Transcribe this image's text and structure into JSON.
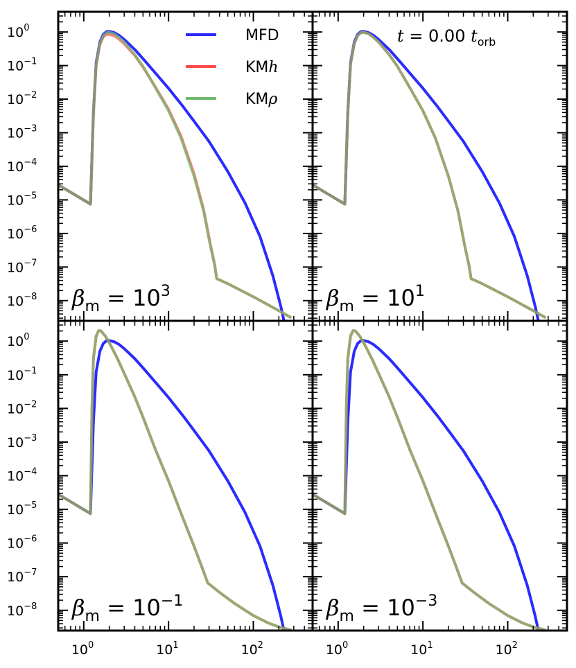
{
  "chart_data": {
    "type": "line",
    "x_scale": "log",
    "y_scale": "log",
    "xlim": [
      0.5,
      500
    ],
    "ylim": [
      2.5e-09,
      4
    ],
    "grid": false,
    "legend_position": "top-right of top-left panel",
    "x_tick_labels": [
      {
        "value": 1,
        "base": "10",
        "exp": "0"
      },
      {
        "value": 10,
        "base": "10",
        "exp": "1"
      },
      {
        "value": 100,
        "base": "10",
        "exp": "2"
      }
    ],
    "y_tick_labels": [
      {
        "value": 1,
        "base": "10",
        "exp": "0"
      },
      {
        "value": 0.1,
        "base": "10",
        "exp": "−1"
      },
      {
        "value": 0.01,
        "base": "10",
        "exp": "−2"
      },
      {
        "value": 0.001,
        "base": "10",
        "exp": "−3"
      },
      {
        "value": 0.0001,
        "base": "10",
        "exp": "−4"
      },
      {
        "value": 1e-05,
        "base": "10",
        "exp": "−5"
      },
      {
        "value": 1e-06,
        "base": "10",
        "exp": "−6"
      },
      {
        "value": 1e-07,
        "base": "10",
        "exp": "−7"
      },
      {
        "value": 1e-08,
        "base": "10",
        "exp": "−8"
      }
    ],
    "legend": [
      {
        "name_main": "MFD",
        "name_italic": "",
        "color": "#2b2bff"
      },
      {
        "name_main": "KM",
        "name_italic": "h",
        "color": "#ff4a4a"
      },
      {
        "name_main": "KM",
        "name_italic": "ρ",
        "color": "#6db86d"
      }
    ],
    "time_annotation": {
      "t": "t",
      "eq": " = 0.00 ",
      "t2": "t",
      "sub": "orb"
    },
    "panels": [
      {
        "label": {
          "beta": "β",
          "sub": "m",
          "eq": " = 10",
          "exp": "3"
        },
        "series": [
          {
            "name": "MFD",
            "color": "#2b2bff",
            "x": [
              0.5,
              1.2,
              1.3,
              1.4,
              1.55,
              1.7,
              1.85,
              2.0,
              2.3,
              2.6,
              3.0,
              4.0,
              5.0,
              7.0,
              10,
              15,
              20,
              30,
              50,
              80,
              120,
              170,
              210,
              230,
              300
            ],
            "y": [
              2.8e-05,
              7.5e-06,
              0.004,
              0.12,
              0.5,
              0.85,
              1.02,
              1.04,
              0.95,
              0.8,
              0.6,
              0.3,
              0.16,
              0.06,
              0.021,
              0.0058,
              0.0022,
              0.00055,
              7e-05,
              8e-06,
              8e-07,
              5.5e-08,
              7e-09,
              2.5e-09,
              1.2e-09
            ]
          },
          {
            "name": "KMh",
            "color": "#ff4a4a",
            "x": [
              0.5,
              1.2,
              1.3,
              1.4,
              1.55,
              1.7,
              1.85,
              2.0,
              2.3,
              2.6,
              3.0,
              4.0,
              5.0,
              7.0,
              10,
              14,
              20,
              26,
              31,
              35,
              37,
              50,
              100,
              200,
              280
            ],
            "y": [
              2.8e-05,
              7.5e-06,
              0.0035,
              0.1,
              0.42,
              0.72,
              0.84,
              0.85,
              0.77,
              0.62,
              0.45,
              0.2,
              0.09,
              0.023,
              0.005,
              0.0008,
              6e-05,
              5e-06,
              5e-07,
              1.2e-07,
              4.5e-08,
              3.2e-08,
              1.3e-08,
              5e-09,
              3.1e-09
            ]
          },
          {
            "name": "KMρ",
            "color": "#6db86d",
            "x": [
              0.5,
              1.2,
              1.3,
              1.4,
              1.55,
              1.7,
              1.85,
              2.0,
              2.3,
              2.6,
              3.0,
              4.0,
              5.0,
              7.0,
              10,
              14,
              20,
              26,
              31,
              35,
              37,
              50,
              100,
              200,
              280
            ],
            "y": [
              2.8e-05,
              7.5e-06,
              0.004,
              0.11,
              0.45,
              0.78,
              0.95,
              0.98,
              0.88,
              0.7,
              0.5,
              0.21,
              0.095,
              0.022,
              0.0045,
              0.0007,
              5e-05,
              4.5e-06,
              4.5e-07,
              1.1e-07,
              4.5e-08,
              3.2e-08,
              1.3e-08,
              5e-09,
              3.1e-09
            ]
          }
        ]
      },
      {
        "label": {
          "beta": "β",
          "sub": "m",
          "eq": " = 10",
          "exp": "1"
        },
        "series": [
          {
            "name": "MFD",
            "color": "#2b2bff",
            "x": [
              0.5,
              1.2,
              1.3,
              1.4,
              1.55,
              1.7,
              1.85,
              2.0,
              2.3,
              2.6,
              3.0,
              4.0,
              5.0,
              7.0,
              10,
              15,
              20,
              30,
              50,
              80,
              120,
              170,
              210,
              230,
              300
            ],
            "y": [
              2.8e-05,
              7.5e-06,
              0.004,
              0.12,
              0.5,
              0.85,
              1.02,
              1.04,
              0.95,
              0.8,
              0.6,
              0.3,
              0.16,
              0.06,
              0.021,
              0.0058,
              0.0022,
              0.00055,
              7e-05,
              8e-06,
              8e-07,
              5.5e-08,
              7e-09,
              2.5e-09,
              1.2e-09
            ]
          },
          {
            "name": "KMh",
            "color": "#ff4a4a",
            "x": [
              0.5,
              1.2,
              1.3,
              1.4,
              1.55,
              1.7,
              1.85,
              2.0,
              2.3,
              2.6,
              3.0,
              4.0,
              5.0,
              7.0,
              10,
              14,
              20,
              26,
              31,
              35,
              37,
              50,
              100,
              200,
              280
            ],
            "y": [
              2.8e-05,
              7.5e-06,
              0.004,
              0.11,
              0.45,
              0.78,
              0.95,
              0.98,
              0.88,
              0.7,
              0.5,
              0.21,
              0.095,
              0.022,
              0.0045,
              0.0007,
              5e-05,
              4.5e-06,
              4.5e-07,
              1.1e-07,
              4.5e-08,
              3.2e-08,
              1.3e-08,
              5e-09,
              3.1e-09
            ]
          },
          {
            "name": "KMρ",
            "color": "#6db86d",
            "x": [
              0.5,
              1.2,
              1.3,
              1.4,
              1.55,
              1.7,
              1.85,
              2.0,
              2.3,
              2.6,
              3.0,
              4.0,
              5.0,
              7.0,
              10,
              14,
              20,
              26,
              31,
              35,
              37,
              50,
              100,
              200,
              280
            ],
            "y": [
              2.8e-05,
              7.5e-06,
              0.004,
              0.11,
              0.45,
              0.78,
              0.95,
              0.98,
              0.88,
              0.7,
              0.5,
              0.21,
              0.095,
              0.022,
              0.0045,
              0.0007,
              5e-05,
              4.5e-06,
              4.5e-07,
              1.1e-07,
              4.5e-08,
              3.2e-08,
              1.3e-08,
              5e-09,
              3.1e-09
            ]
          }
        ]
      },
      {
        "label": {
          "beta": "β",
          "sub": "m",
          "eq": " = 10",
          "exp": "−1"
        },
        "series": [
          {
            "name": "MFD",
            "color": "#2b2bff",
            "x": [
              0.5,
              1.2,
              1.3,
              1.4,
              1.55,
              1.7,
              1.85,
              2.0,
              2.3,
              2.6,
              3.0,
              4.0,
              5.0,
              7.0,
              10,
              15,
              20,
              30,
              50,
              80,
              120,
              170,
              210,
              230,
              300
            ],
            "y": [
              2.8e-05,
              7.5e-06,
              0.004,
              0.12,
              0.5,
              0.85,
              1.02,
              1.04,
              0.95,
              0.8,
              0.6,
              0.3,
              0.16,
              0.06,
              0.021,
              0.0058,
              0.0022,
              0.00055,
              7e-05,
              8e-06,
              8e-07,
              5.5e-08,
              7e-09,
              2.5e-09,
              1.2e-09
            ]
          },
          {
            "name": "KMh",
            "color": "#ff4a4a",
            "x": [
              0.5,
              1.2,
              1.25,
              1.3,
              1.4,
              1.5,
              1.6,
              1.8,
              2.0,
              2.5,
              3.0,
              4.0,
              5.0,
              7.0,
              10,
              15,
              20,
              25,
              29,
              40,
              60,
              100,
              150,
              200,
              280
            ],
            "y": [
              2.8e-05,
              7.5e-06,
              0.01,
              0.3,
              1.4,
              2.05,
              2.0,
              1.4,
              0.9,
              0.3,
              0.11,
              0.022,
              0.0055,
              0.0006,
              7e-05,
              5e-06,
              8e-07,
              1.8e-07,
              6.5e-08,
              3.4e-08,
              1.6e-08,
              7e-09,
              4.2e-09,
              3.2e-09,
              2.6e-09
            ]
          },
          {
            "name": "KMρ",
            "color": "#6db86d",
            "x": [
              0.5,
              1.2,
              1.25,
              1.3,
              1.4,
              1.5,
              1.6,
              1.8,
              2.0,
              2.5,
              3.0,
              4.0,
              5.0,
              7.0,
              10,
              15,
              20,
              25,
              29,
              40,
              60,
              100,
              150,
              200,
              280
            ],
            "y": [
              2.8e-05,
              7.5e-06,
              0.01,
              0.3,
              1.4,
              2.05,
              2.0,
              1.4,
              0.9,
              0.3,
              0.11,
              0.022,
              0.0055,
              0.0006,
              7e-05,
              5e-06,
              8e-07,
              1.8e-07,
              6.5e-08,
              3.4e-08,
              1.6e-08,
              7e-09,
              4.2e-09,
              3.2e-09,
              2.6e-09
            ]
          }
        ]
      },
      {
        "label": {
          "beta": "β",
          "sub": "m",
          "eq": " = 10",
          "exp": "−3"
        },
        "series": [
          {
            "name": "MFD",
            "color": "#2b2bff",
            "x": [
              0.5,
              1.2,
              1.3,
              1.4,
              1.55,
              1.7,
              1.85,
              2.0,
              2.3,
              2.6,
              3.0,
              4.0,
              5.0,
              7.0,
              10,
              15,
              20,
              30,
              50,
              80,
              120,
              170,
              210,
              230,
              300
            ],
            "y": [
              2.8e-05,
              7.5e-06,
              0.004,
              0.12,
              0.5,
              0.85,
              1.02,
              1.04,
              0.95,
              0.8,
              0.6,
              0.3,
              0.16,
              0.06,
              0.021,
              0.0058,
              0.0022,
              0.00055,
              7e-05,
              8e-06,
              8e-07,
              5.5e-08,
              7e-09,
              2.5e-09,
              1.2e-09
            ]
          },
          {
            "name": "KMh",
            "color": "#ff4a4a",
            "x": [
              0.5,
              1.2,
              1.25,
              1.3,
              1.4,
              1.5,
              1.6,
              1.8,
              2.0,
              2.5,
              3.0,
              4.0,
              5.0,
              7.0,
              10,
              15,
              20,
              25,
              29,
              40,
              60,
              100,
              150,
              200,
              280
            ],
            "y": [
              2.8e-05,
              7.5e-06,
              0.01,
              0.3,
              1.4,
              2.05,
              2.0,
              1.4,
              0.9,
              0.3,
              0.11,
              0.022,
              0.0055,
              0.0006,
              7e-05,
              5e-06,
              8e-07,
              1.8e-07,
              6.5e-08,
              3.4e-08,
              1.6e-08,
              7e-09,
              4.2e-09,
              3.2e-09,
              2.6e-09
            ]
          },
          {
            "name": "KMρ",
            "color": "#6db86d",
            "x": [
              0.5,
              1.2,
              1.25,
              1.3,
              1.4,
              1.5,
              1.6,
              1.8,
              2.0,
              2.5,
              3.0,
              4.0,
              5.0,
              7.0,
              10,
              15,
              20,
              25,
              29,
              40,
              60,
              100,
              150,
              200,
              280
            ],
            "y": [
              2.8e-05,
              7.5e-06,
              0.01,
              0.3,
              1.4,
              2.05,
              2.0,
              1.4,
              0.9,
              0.3,
              0.11,
              0.022,
              0.0055,
              0.0006,
              7e-05,
              5e-06,
              8e-07,
              1.8e-07,
              6.5e-08,
              3.4e-08,
              1.6e-08,
              7e-09,
              4.2e-09,
              3.2e-09,
              2.6e-09
            ]
          }
        ]
      }
    ]
  }
}
